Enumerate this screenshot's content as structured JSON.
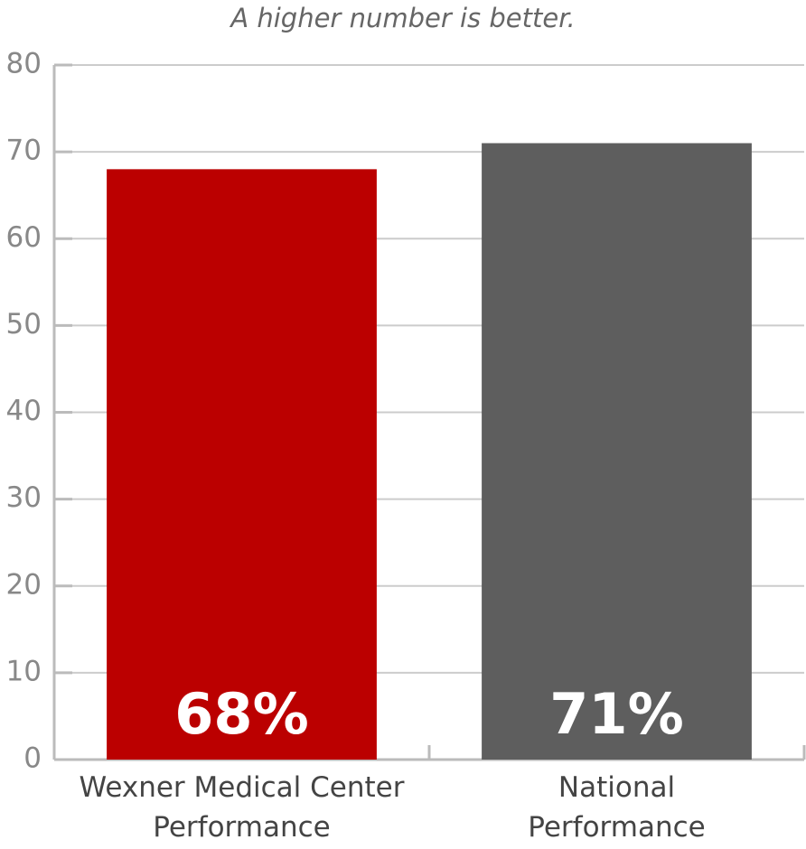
{
  "chart_data": {
    "type": "bar",
    "subtitle": "A higher number is better.",
    "categories": [
      "Wexner Medical Center\nPerformance",
      "National\nPerformance"
    ],
    "values": [
      68,
      71
    ],
    "value_labels": [
      "68%",
      "71%"
    ],
    "colors": [
      "#bb0000",
      "#5e5e5e"
    ],
    "ylim": [
      0,
      80
    ],
    "yticks": [
      0,
      10,
      20,
      30,
      40,
      50,
      60,
      70,
      80
    ],
    "grid": true
  }
}
